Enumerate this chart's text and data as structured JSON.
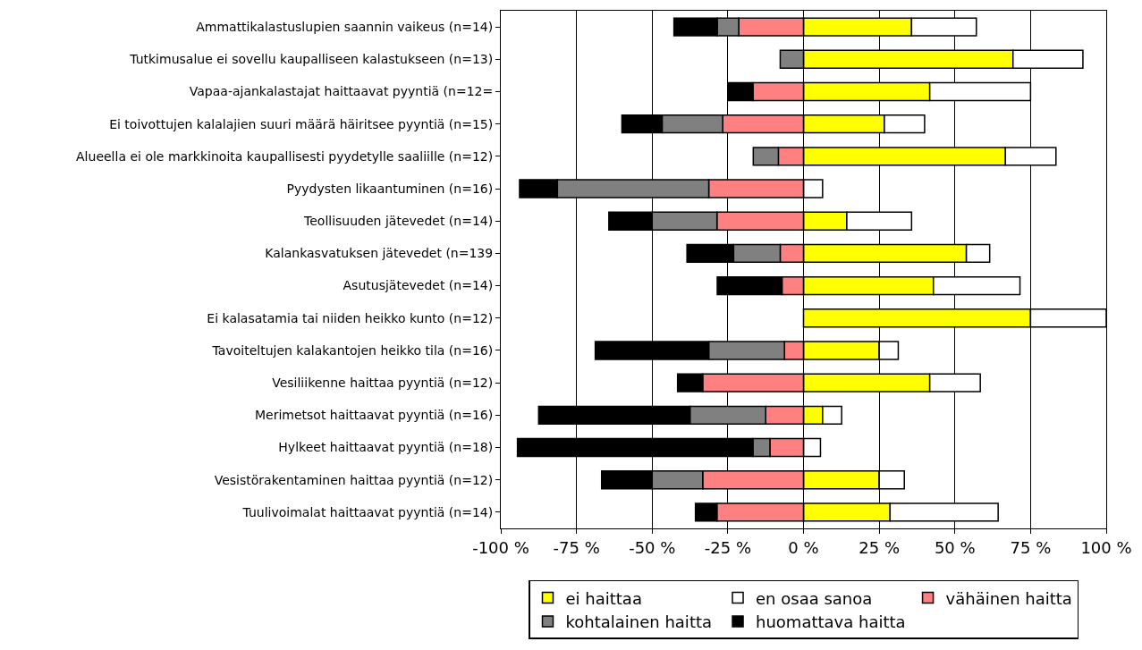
{
  "chart_data": {
    "type": "bar",
    "orientation": "horizontal",
    "stacked": true,
    "categories": [
      "Ammattikalastuslupien saannin vaikeus (n=14)",
      "Tutkimusalue ei sovellu kaupalliseen kalastukseen (n=13)",
      "Vapaa-ajankalastajat haittaavat pyyntiä (n=12=",
      "Ei toivottujen kalalajien suuri määrä häiritsee pyyntiä (n=15)",
      "Alueella ei ole markkinoita kaupallisesti pyydetylle saaliille (n=12)",
      "Pyydysten likaantuminen (n=16)",
      "Teollisuuden jätevedet (n=14)",
      "Kalankasvatuksen jätevedet (n=139",
      "Asutusjätevedet (n=14)",
      "Ei kalasatamia tai niiden heikko kunto (n=12)",
      "Tavoiteltujen kalakantojen heikko tila (n=16)",
      "Vesiliikenne haittaa pyyntiä (n=12)",
      "Merimetsot haittaavat pyyntiä (n=16)",
      "Hylkeet haittaavat pyyntiä (n=18)",
      "Vesistörakentaminen haittaa pyyntiä (n=12)",
      "Tuulivoimalat haittaavat pyyntiä (n=14)"
    ],
    "series": [
      {
        "name": "ei haittaa",
        "color": "#ffff00",
        "values": [
          35.7,
          69.2,
          41.7,
          26.7,
          66.7,
          null,
          14.3,
          53.8,
          42.9,
          75,
          25,
          41.7,
          6.3,
          null,
          25,
          28.6
        ]
      },
      {
        "name": "en osaa sanoa",
        "color": "#ffffff",
        "values": [
          21.4,
          23.1,
          33.3,
          13.3,
          16.7,
          6.3,
          21.4,
          7.7,
          28.6,
          25,
          6.3,
          16.7,
          6.3,
          5.6,
          8.3,
          35.7
        ]
      },
      {
        "name": "vähäinen haitta",
        "color": "#ff8080",
        "values": [
          -21.4,
          null,
          -16.7,
          -26.7,
          -8.3,
          -31.3,
          -28.6,
          -7.7,
          -7.1,
          null,
          -6.3,
          -33.3,
          -12.5,
          -11.1,
          -33.3,
          -28.6
        ]
      },
      {
        "name": "kohtalainen haitta",
        "color": "#808080",
        "values": [
          -7.1,
          -7.7,
          null,
          -20,
          -8.3,
          -50,
          -21.4,
          -15.4,
          null,
          null,
          -25,
          null,
          -25,
          -5.6,
          -16.7,
          null
        ]
      },
      {
        "name": "huomattava haitta",
        "color": "#000000",
        "values": [
          -14.3,
          null,
          -8.3,
          -13.3,
          null,
          -12.5,
          -14.3,
          -15.4,
          -21.4,
          null,
          -37.5,
          -8.3,
          -50,
          -77.8,
          -16.7,
          -7.1
        ]
      }
    ],
    "xlim": [
      -100,
      100
    ],
    "xticks": [
      {
        "value": -100,
        "label": "-100 %"
      },
      {
        "value": -75,
        "label": "-75 %"
      },
      {
        "value": -50,
        "label": "-50 %"
      },
      {
        "value": -25,
        "label": "-25 %"
      },
      {
        "value": 0,
        "label": "0 %"
      },
      {
        "value": 25,
        "label": "25 %"
      },
      {
        "value": 50,
        "label": "50 %"
      },
      {
        "value": 75,
        "label": "75 %"
      },
      {
        "value": 100,
        "label": "100 %"
      }
    ],
    "grid": "x",
    "legend": "bottom"
  }
}
